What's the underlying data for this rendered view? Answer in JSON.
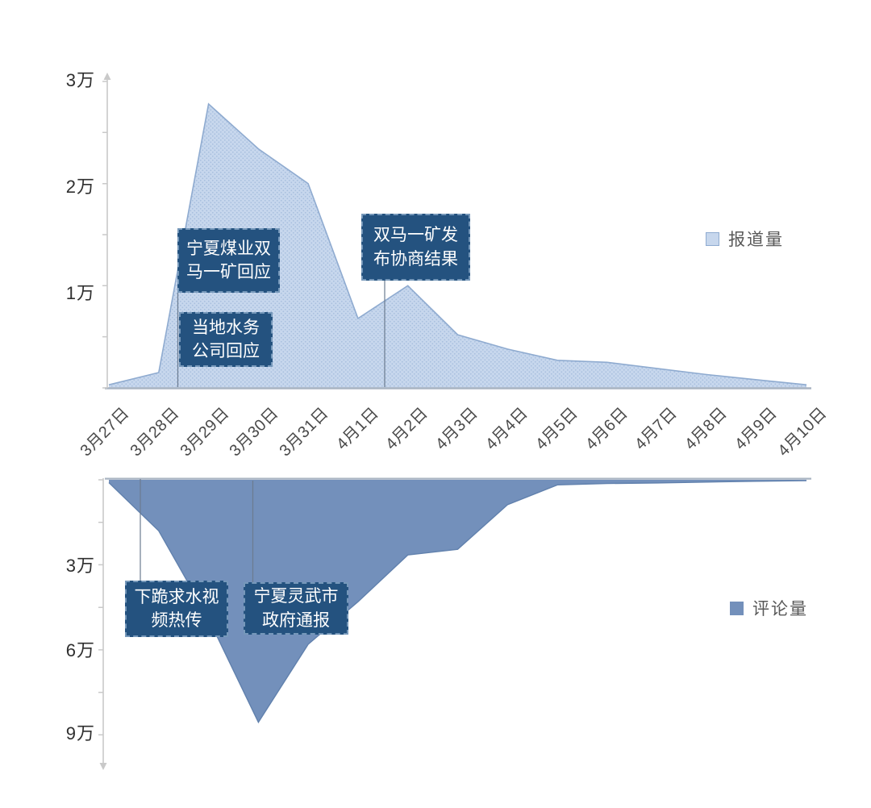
{
  "chart_data": {
    "type": "area",
    "title": "",
    "unit": "万",
    "categories": [
      "3月27日",
      "3月28日",
      "3月29日",
      "3月30日",
      "3月31日",
      "4月1日",
      "4月2日",
      "4月3日",
      "4月4日",
      "4月5日",
      "4月6日",
      "4月7日",
      "4月8日",
      "4月9日",
      "4月10日"
    ],
    "series": [
      {
        "name": "报道量",
        "direction": "up",
        "ylim": [
          0,
          3
        ],
        "values": [
          0.03,
          0.15,
          2.78,
          2.34,
          2.0,
          0.68,
          1.0,
          0.52,
          0.38,
          0.27,
          0.25,
          0.19,
          0.13,
          0.08,
          0.03
        ]
      },
      {
        "name": "评论量",
        "direction": "down",
        "ylim": [
          0,
          9
        ],
        "values": [
          0.1,
          1.8,
          4.9,
          8.55,
          5.8,
          4.3,
          2.65,
          2.45,
          0.88,
          0.18,
          0.13,
          0.11,
          0.08,
          0.05,
          0.03
        ]
      }
    ],
    "top_axis_labels": [
      "3万",
      "2万",
      "1万"
    ],
    "bottom_axis_labels": [
      "3万",
      "6万",
      "9万"
    ],
    "grid": false,
    "legend_position": "right",
    "annotations": {
      "report": [
        {
          "line1": "宁夏煤业双",
          "line2": "马一矿回应"
        },
        {
          "line1": "当地水务",
          "line2": "公司回应"
        },
        {
          "line1": "双马一矿发",
          "line2": "布协商结果"
        }
      ],
      "comment": [
        {
          "line1": "下跪求水视",
          "line2": "频热传"
        },
        {
          "line1": "宁夏灵武市",
          "line2": "政府通报"
        }
      ]
    }
  },
  "colors": {
    "report_fill_base": "#c7d7ed",
    "report_fill_dot": "#a8bfde",
    "report_stroke": "#8fabd0",
    "comment_fill": "#7390bb",
    "comment_stroke": "#6181ad",
    "annotation_box": "#24527f",
    "annotation_text": "#ffffff",
    "axis": "#c9c9c9",
    "baseline": "#a9b4c2",
    "leader_line": "#6b7b90"
  }
}
